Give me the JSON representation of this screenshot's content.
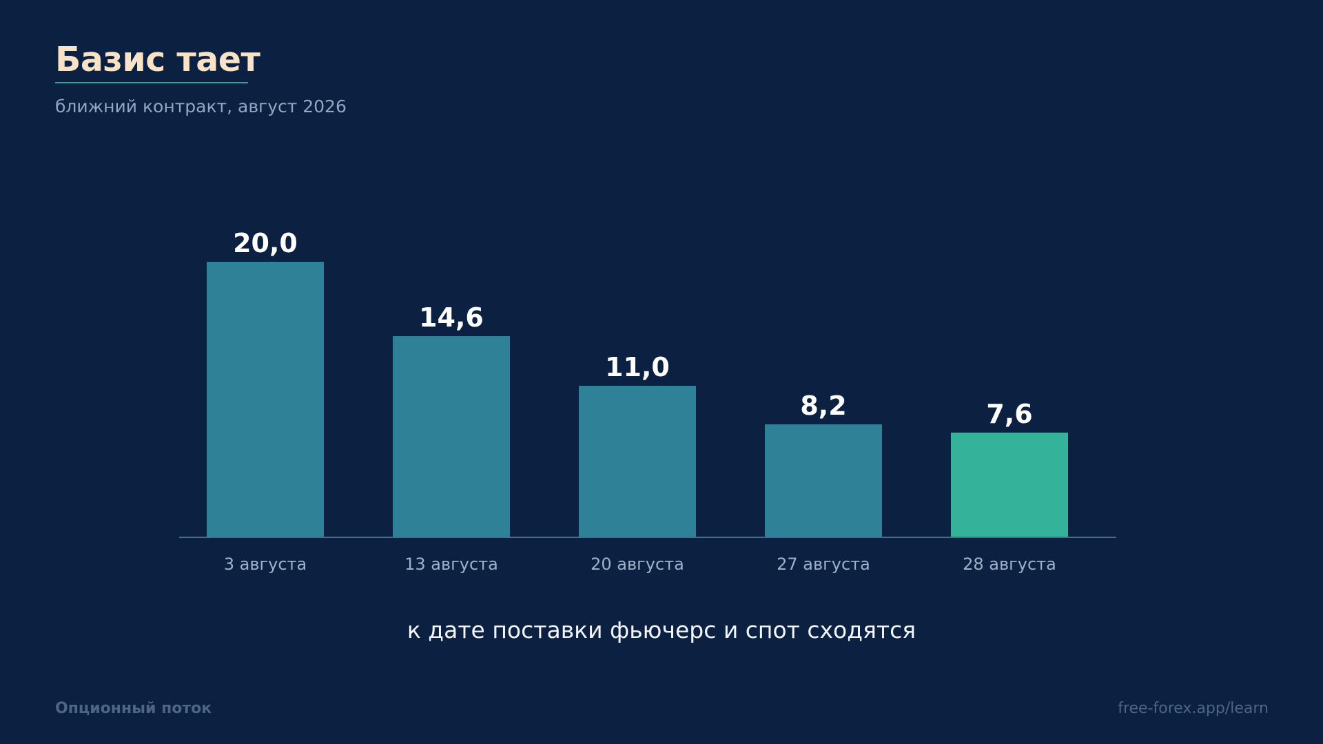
{
  "slide": {
    "title": "Базис тает",
    "subtitle": "ближний контракт, август 2026",
    "caption": "к дате поставки фьючерс и спот сходятся",
    "footer_left": "Опционный поток",
    "footer_right": "free-forex.app/learn"
  },
  "colors": {
    "background": "#0c2142",
    "bar": "#2e8196",
    "bar_highlight": "#34b39a",
    "title": "#f9e3c6",
    "title_underline": "#2aa59a",
    "axis": "#4a6a8e"
  },
  "chart_data": {
    "type": "bar",
    "categories": [
      "3 августа",
      "13 августа",
      "20 августа",
      "27 августа",
      "28 августа"
    ],
    "values": [
      20.0,
      14.6,
      11.0,
      8.2,
      7.6
    ],
    "value_labels": [
      "20,0",
      "14,6",
      "11,0",
      "8,2",
      "7,6"
    ],
    "highlight_index": 4,
    "title": "Базис тает",
    "subtitle": "ближний контракт, август 2026",
    "xlabel": "",
    "ylabel": "",
    "ylim": [
      0,
      20
    ],
    "grid": false,
    "legend": "none"
  }
}
